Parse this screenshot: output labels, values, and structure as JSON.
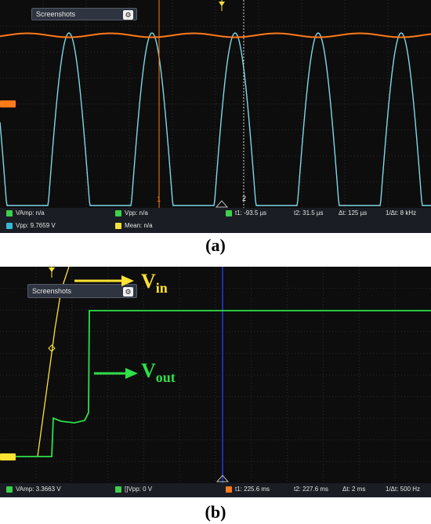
{
  "panel_a": {
    "window_label": "Screenshots",
    "cursor_labels": [
      "1",
      "2"
    ],
    "measurements": {
      "vamp": "VAmp: n/a",
      "vpp_ch1": "Vpp: n/a",
      "t1": "t1: -93.5 µs",
      "t2": "t2: 31.5 µs",
      "dt": "Δt: 125 µs",
      "inv_dt": "1/Δt: 8 kHz",
      "vpp_m1": "Vpp: 9.7659 V",
      "mean": "Mean: n/a"
    },
    "caption": "(a)"
  },
  "panel_b": {
    "window_label": "Screenshots",
    "annotation_in": {
      "main": "V",
      "sub": "in",
      "color": "#ffe233"
    },
    "annotation_out": {
      "main": "V",
      "sub": "out",
      "color": "#2ee04a"
    },
    "measurements": {
      "vamp": "VAmp: 3.3663 V",
      "vpp": "[]Vpp: 0 V",
      "t1": "t1: 225.6 ms",
      "t2": "t2: 227.6 ms",
      "dt": "Δt: 2 ms",
      "inv_dt": "1/Δt: 500 Hz"
    },
    "caption": "(b)"
  },
  "colors": {
    "vin": "#ffe233",
    "vout": "#2ee04a",
    "orange_trace": "#ff7a1a",
    "cyan_trace": "#7ed7e6",
    "grid": "#2b2b2b",
    "cursor_blue": "#2a3bd6"
  },
  "icons": [
    "gear-icon",
    "arrow-right-icon"
  ]
}
